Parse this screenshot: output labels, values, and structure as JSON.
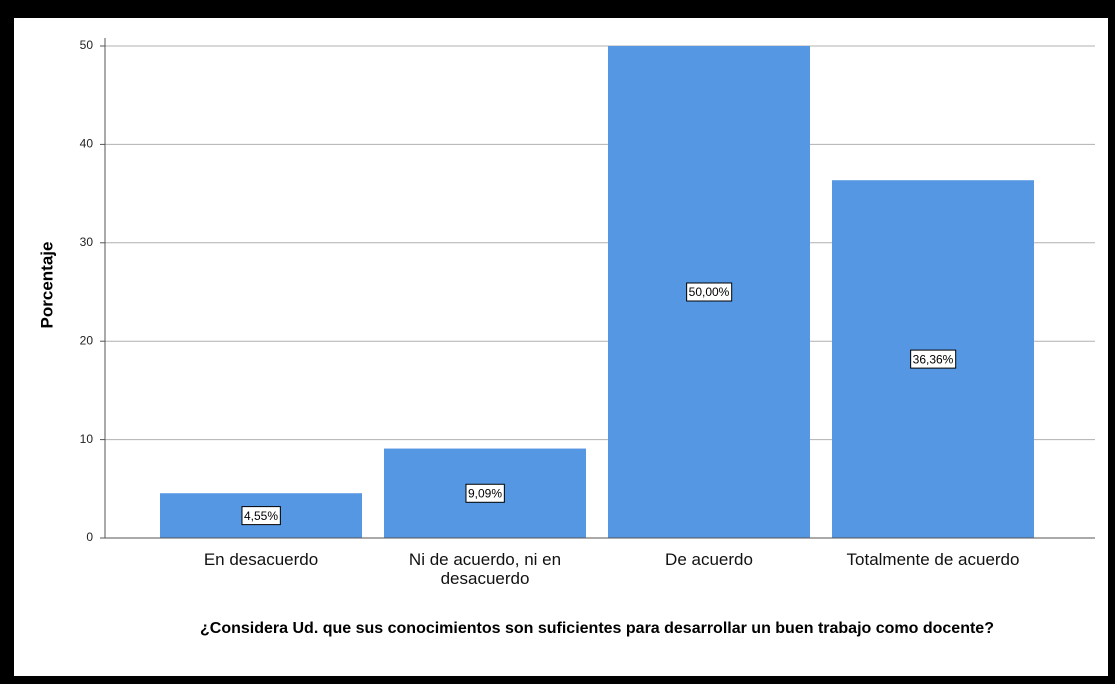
{
  "chart_data": {
    "type": "bar",
    "x_label": "¿Considera Ud. que sus conocimientos son suficientes para desarrollar un buen trabajo como docente?",
    "y_label": "Porcentaje",
    "categories": [
      "En desacuerdo",
      "Ni de acuerdo, ni en desacuerdo",
      "De acuerdo",
      "Totalmente de acuerdo"
    ],
    "values": [
      4.55,
      9.09,
      50.0,
      36.36
    ],
    "value_labels": [
      "4,55%",
      "9,09%",
      "50,00%",
      "36,36%"
    ],
    "color": "#5597e3",
    "ylim": [
      0,
      50
    ],
    "yticks": [
      0,
      10,
      20,
      30,
      40,
      50
    ],
    "grid": true
  }
}
